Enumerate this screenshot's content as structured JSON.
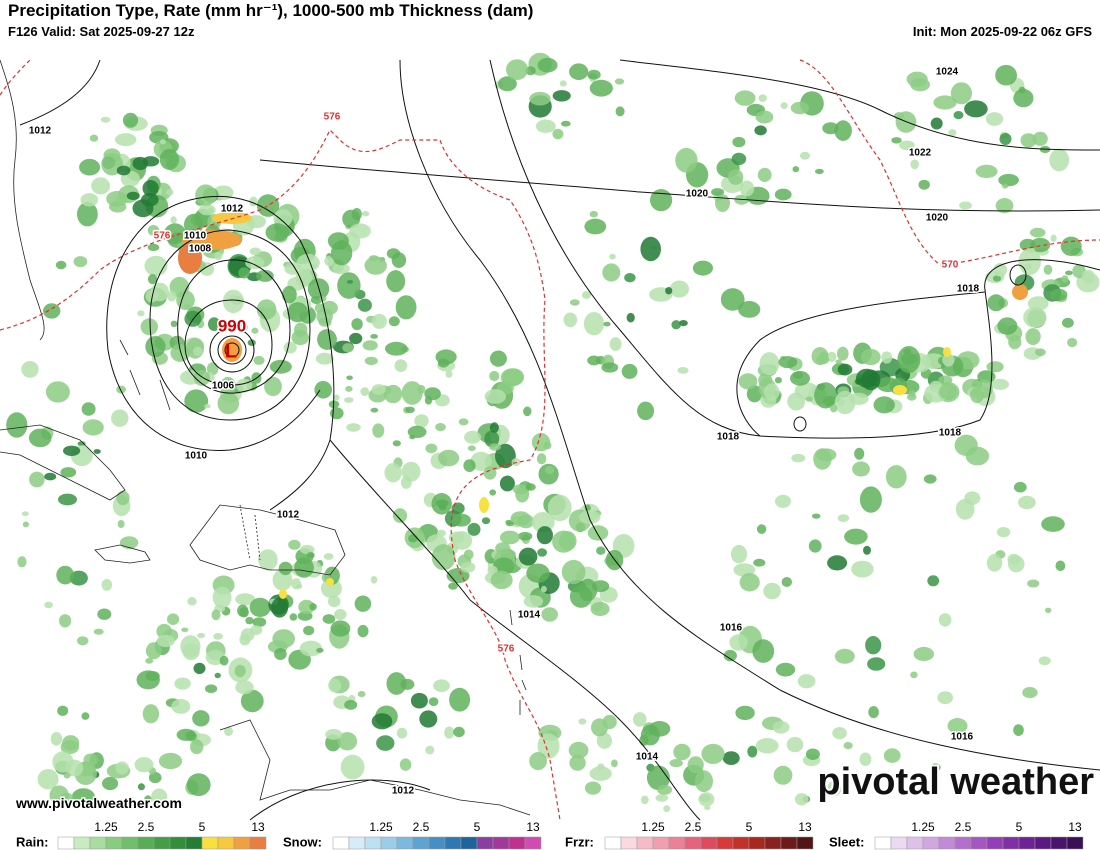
{
  "header": {
    "title": "Precipitation Type, Rate (mm hr⁻¹), 1000-500 mb Thickness (dam)",
    "valid": "F126 Valid: Sat 2025-09-27 12z",
    "init": "Init: Mon 2025-09-22 06z GFS"
  },
  "isobar_labels": [
    "1024",
    "1022",
    "1020",
    "1020",
    "1018",
    "1018",
    "1018",
    "1016",
    "1016",
    "1014",
    "1014",
    "1012",
    "1012",
    "1012",
    "1012",
    "1010",
    "1010",
    "1008",
    "1006"
  ],
  "thickness_labels": [
    "576",
    "576",
    "576",
    "570"
  ],
  "low": {
    "pressure": "990",
    "symbol": "L"
  },
  "footer": {
    "url": "www.pivotalweather.com",
    "brand": "pivotal weather"
  },
  "legend": [
    {
      "name": "Rain:",
      "ticks": [
        "1.25",
        "2.5",
        "5",
        "13"
      ]
    },
    {
      "name": "Snow:",
      "ticks": [
        "1.25",
        "2.5",
        "5",
        "13"
      ]
    },
    {
      "name": "Frzr:",
      "ticks": [
        "1.25",
        "2.5",
        "5",
        "13"
      ]
    },
    {
      "name": "Sleet:",
      "ticks": [
        "1.25",
        "2.5",
        "5",
        "13"
      ]
    }
  ]
}
